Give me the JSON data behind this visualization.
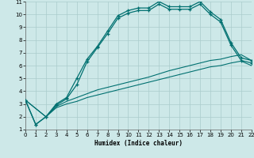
{
  "xlabel": "Humidex (Indice chaleur)",
  "xlim": [
    0,
    22
  ],
  "ylim": [
    1,
    11
  ],
  "xticks": [
    0,
    1,
    2,
    3,
    4,
    5,
    6,
    7,
    8,
    9,
    10,
    11,
    12,
    13,
    14,
    15,
    16,
    17,
    18,
    19,
    20,
    21,
    22
  ],
  "yticks": [
    1,
    2,
    3,
    4,
    5,
    6,
    7,
    8,
    9,
    10,
    11
  ],
  "background_color": "#cde8e8",
  "grid_color": "#aacccc",
  "line_color": "#007070",
  "line1_x": [
    0,
    1,
    2,
    3,
    4,
    5,
    6,
    7,
    8,
    9,
    10,
    11,
    12,
    13,
    14,
    15,
    16,
    17,
    18,
    19,
    20,
    21,
    22
  ],
  "line1_y": [
    3.3,
    1.4,
    2.0,
    3.0,
    3.5,
    5.0,
    6.5,
    7.5,
    8.7,
    9.9,
    10.3,
    10.5,
    10.5,
    11.0,
    10.6,
    10.6,
    10.6,
    11.0,
    10.2,
    9.6,
    7.8,
    6.6,
    6.4
  ],
  "line2_x": [
    0,
    1,
    2,
    3,
    4,
    5,
    6,
    7,
    8,
    9,
    10,
    11,
    12,
    13,
    14,
    15,
    16,
    17,
    18,
    19,
    20,
    21,
    22
  ],
  "line2_y": [
    3.3,
    1.4,
    2.0,
    2.9,
    3.4,
    4.5,
    6.3,
    7.4,
    8.5,
    9.7,
    10.1,
    10.3,
    10.3,
    10.8,
    10.4,
    10.4,
    10.4,
    10.8,
    10.0,
    9.4,
    7.6,
    6.4,
    6.2
  ],
  "line3_x": [
    0,
    2,
    3,
    4,
    5,
    6,
    7,
    8,
    9,
    10,
    11,
    12,
    13,
    14,
    15,
    16,
    17,
    18,
    19,
    20,
    21,
    22
  ],
  "line3_y": [
    3.3,
    2.0,
    2.8,
    3.2,
    3.5,
    3.8,
    4.1,
    4.3,
    4.5,
    4.7,
    4.9,
    5.1,
    5.35,
    5.6,
    5.8,
    6.0,
    6.2,
    6.4,
    6.5,
    6.7,
    6.85,
    6.4
  ],
  "line4_x": [
    0,
    2,
    3,
    4,
    5,
    6,
    7,
    8,
    9,
    10,
    11,
    12,
    13,
    14,
    15,
    16,
    17,
    18,
    19,
    20,
    21,
    22
  ],
  "line4_y": [
    3.3,
    2.0,
    2.7,
    3.0,
    3.2,
    3.5,
    3.7,
    3.9,
    4.1,
    4.3,
    4.5,
    4.7,
    4.9,
    5.1,
    5.3,
    5.5,
    5.7,
    5.9,
    6.0,
    6.2,
    6.35,
    6.0
  ]
}
